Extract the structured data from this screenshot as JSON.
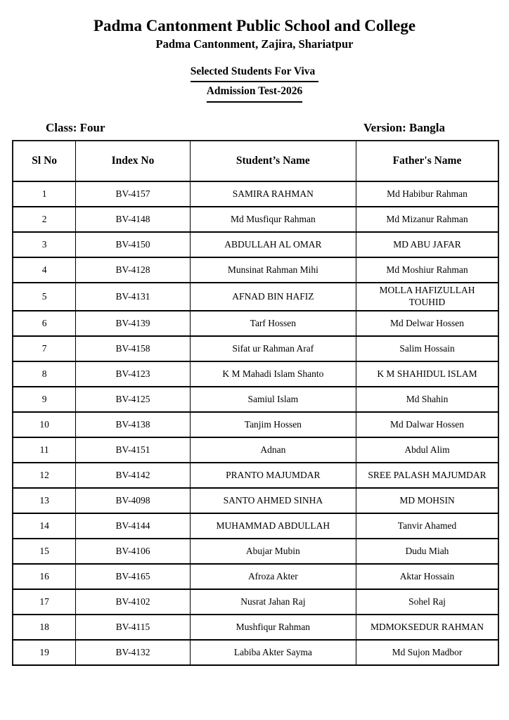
{
  "header": {
    "school_name": "Padma Cantonment Public School and College",
    "address": "Padma Cantonment, Zajira, Shariatpur",
    "notice_line1": "Selected Students For Viva",
    "notice_line2": "Admission Test-2026",
    "class_label": "Class: Four",
    "version_label": "Version: Bangla"
  },
  "table": {
    "columns": [
      "Sl No",
      "Index No",
      "Student’s Name",
      "Father's Name"
    ],
    "rows": [
      {
        "sl": "1",
        "index_no": "BV-4157",
        "student_name": "SAMIRA RAHMAN",
        "father_name": "Md Habibur Rahman"
      },
      {
        "sl": "2",
        "index_no": "BV-4148",
        "student_name": "Md Musfiqur Rahman",
        "father_name": "Md Mizanur Rahman"
      },
      {
        "sl": "3",
        "index_no": "BV-4150",
        "student_name": "ABDULLAH AL OMAR",
        "father_name": "MD ABU JAFAR"
      },
      {
        "sl": "4",
        "index_no": "BV-4128",
        "student_name": "Munsinat Rahman Mihi",
        "father_name": "Md Moshiur Rahman"
      },
      {
        "sl": "5",
        "index_no": "BV-4131",
        "student_name": "AFNAD BIN HAFIZ",
        "father_name": "MOLLA HAFIZULLAH\nTOUHID"
      },
      {
        "sl": "6",
        "index_no": "BV-4139",
        "student_name": "Tarf Hossen",
        "father_name": "Md Delwar Hossen"
      },
      {
        "sl": "7",
        "index_no": "BV-4158",
        "student_name": "Sifat ur Rahman Araf",
        "father_name": "Salim Hossain"
      },
      {
        "sl": "8",
        "index_no": "BV-4123",
        "student_name": "K M  Mahadi Islam Shanto",
        "father_name": "K M SHAHIDUL ISLAM"
      },
      {
        "sl": "9",
        "index_no": "BV-4125",
        "student_name": "Samiul Islam",
        "father_name": "Md Shahin"
      },
      {
        "sl": "10",
        "index_no": "BV-4138",
        "student_name": "Tanjim Hossen",
        "father_name": "Md Dalwar Hossen"
      },
      {
        "sl": "11",
        "index_no": "BV-4151",
        "student_name": "Adnan",
        "father_name": "Abdul Alim"
      },
      {
        "sl": "12",
        "index_no": "BV-4142",
        "student_name": "PRANTO MAJUMDAR",
        "father_name": "SREE PALASH MAJUMDAR"
      },
      {
        "sl": "13",
        "index_no": "BV-4098",
        "student_name": "SANTO AHMED SINHA",
        "father_name": "MD MOHSIN"
      },
      {
        "sl": "14",
        "index_no": "BV-4144",
        "student_name": "MUHAMMAD ABDULLAH",
        "father_name": "Tanvir Ahamed"
      },
      {
        "sl": "15",
        "index_no": "BV-4106",
        "student_name": "Abujar Mubin",
        "father_name": "Dudu Miah"
      },
      {
        "sl": "16",
        "index_no": "BV-4165",
        "student_name": "Afroza Akter",
        "father_name": "Aktar Hossain"
      },
      {
        "sl": "17",
        "index_no": "BV-4102",
        "student_name": "Nusrat Jahan Raj",
        "father_name": "Sohel Raj"
      },
      {
        "sl": "18",
        "index_no": "BV-4115",
        "student_name": "Mushfiqur Rahman",
        "father_name": "MDMOKSEDUR RAHMAN"
      },
      {
        "sl": "19",
        "index_no": "BV-4132",
        "student_name": "Labiba Akter Sayma",
        "father_name": "Md Sujon Madbor"
      }
    ]
  }
}
